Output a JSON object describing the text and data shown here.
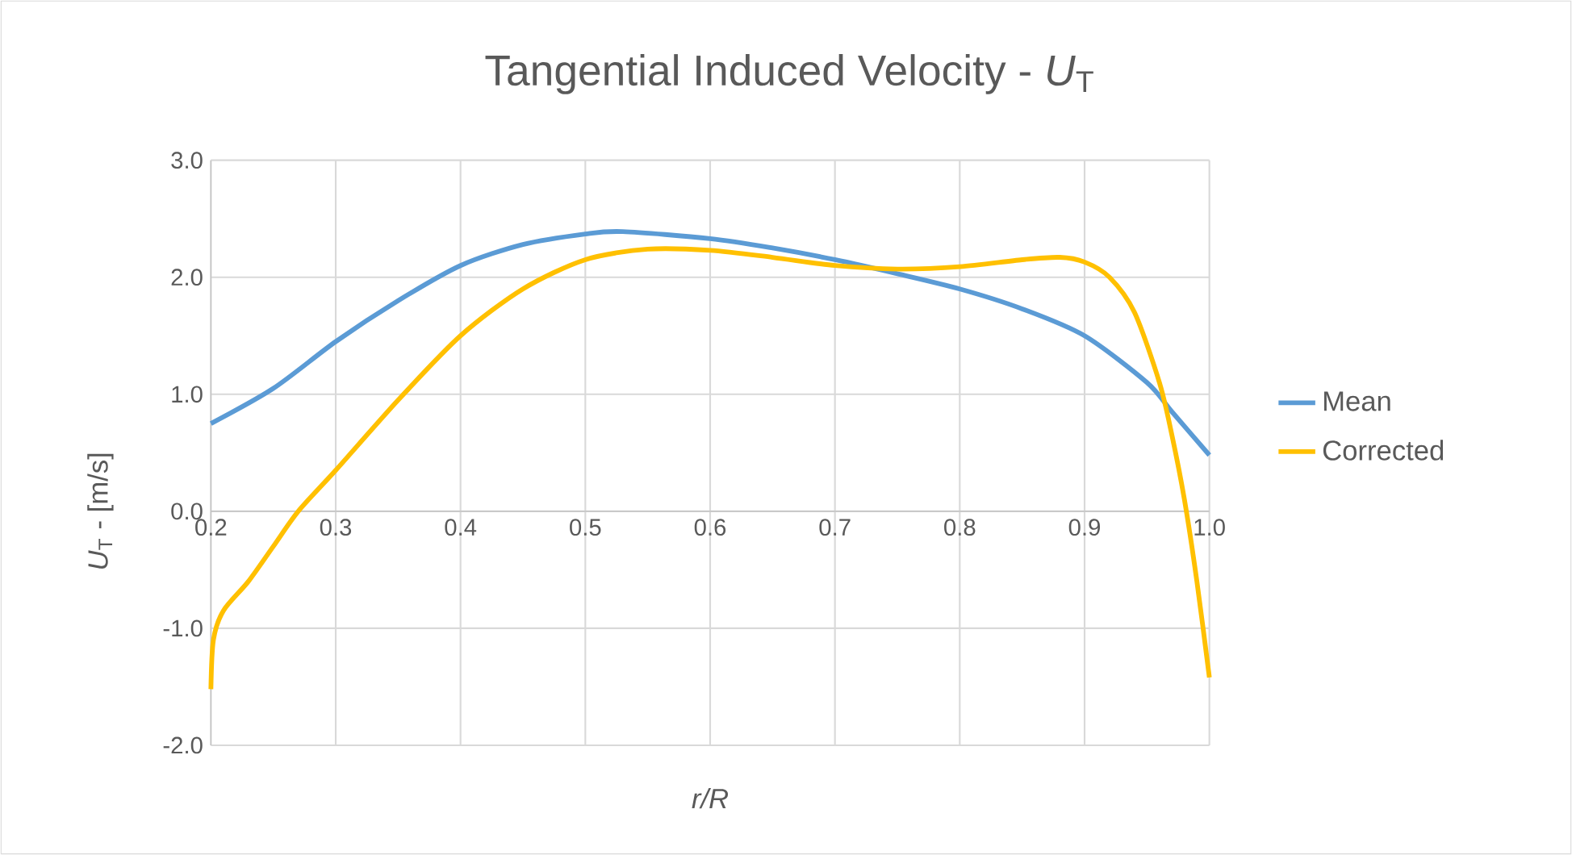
{
  "chart_data": {
    "type": "line",
    "title": "Tangential Induced Velocity - *U*$_{T}$",
    "xlabel": "r/R",
    "ylabel": "*U*$_{T}$ - [m/s]",
    "xlim": [
      0.2,
      1.0
    ],
    "ylim": [
      -2.0,
      3.0
    ],
    "xticks": [
      {
        "value": 0.2,
        "label": "0.2"
      },
      {
        "value": 0.3,
        "label": "0.3"
      },
      {
        "value": 0.4,
        "label": "0.4"
      },
      {
        "value": 0.5,
        "label": "0.5"
      },
      {
        "value": 0.6,
        "label": "0.6"
      },
      {
        "value": 0.7,
        "label": "0.7"
      },
      {
        "value": 0.8,
        "label": "0.8"
      },
      {
        "value": 0.9,
        "label": "0.9"
      },
      {
        "value": 1.0,
        "label": "1.0"
      }
    ],
    "yticks": [
      {
        "value": -2.0,
        "label": "-2.0"
      },
      {
        "value": -1.0,
        "label": "-1.0"
      },
      {
        "value": 0.0,
        "label": "0.0"
      },
      {
        "value": 1.0,
        "label": "1.0"
      },
      {
        "value": 2.0,
        "label": "2.0"
      },
      {
        "value": 3.0,
        "label": "3.0"
      }
    ],
    "grid": true,
    "legend": "right",
    "marker": "none",
    "line_style": "solid",
    "series": [
      {
        "name": "Mean",
        "color": "#5b9bd5",
        "x": [
          0.2,
          0.25,
          0.3,
          0.35,
          0.4,
          0.45,
          0.5,
          0.53,
          0.6,
          0.65,
          0.7,
          0.75,
          0.8,
          0.85,
          0.9,
          0.95,
          0.97,
          1.0
        ],
        "values": [
          0.75,
          1.05,
          1.45,
          1.8,
          2.1,
          2.28,
          2.37,
          2.39,
          2.33,
          2.25,
          2.15,
          2.03,
          1.9,
          1.73,
          1.5,
          1.1,
          0.85,
          0.48
        ]
      },
      {
        "name": "Corrected",
        "color": "#ffc000",
        "x": [
          0.2,
          0.202,
          0.21,
          0.23,
          0.25,
          0.27,
          0.3,
          0.35,
          0.4,
          0.45,
          0.5,
          0.55,
          0.6,
          0.65,
          0.7,
          0.75,
          0.8,
          0.85,
          0.88,
          0.9,
          0.92,
          0.94,
          0.96,
          0.97,
          0.98,
          0.99,
          1.0
        ],
        "values": [
          -1.52,
          -1.1,
          -0.85,
          -0.6,
          -0.3,
          0.0,
          0.35,
          0.95,
          1.5,
          1.9,
          2.15,
          2.24,
          2.23,
          2.17,
          2.1,
          2.07,
          2.09,
          2.15,
          2.17,
          2.13,
          2.0,
          1.7,
          1.1,
          0.65,
          0.1,
          -0.6,
          -1.42
        ]
      }
    ]
  }
}
